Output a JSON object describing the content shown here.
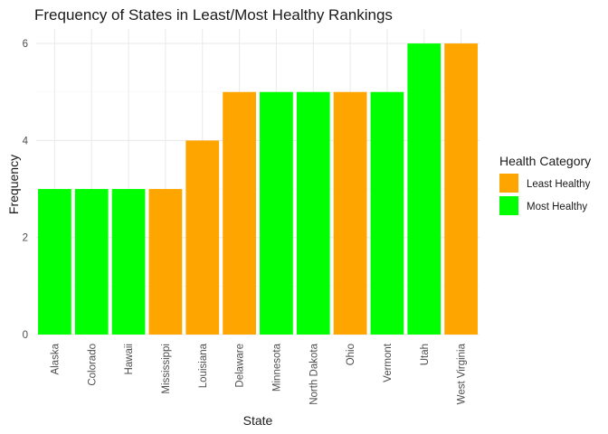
{
  "chart_data": {
    "type": "bar",
    "title": "Frequency of States in Least/Most Healthy Rankings",
    "xlabel": "State",
    "ylabel": "Frequency",
    "ylim": [
      0,
      6.3
    ],
    "yticks": [
      0,
      2,
      4,
      6
    ],
    "grid": true,
    "legend": {
      "title": "Health Category",
      "placement": "right",
      "entries": [
        {
          "label": "Least Healthy",
          "color": "#FFA500"
        },
        {
          "label": "Most Healthy",
          "color": "#00FF00"
        }
      ]
    },
    "categories": [
      "Alaska",
      "Colorado",
      "Hawaii",
      "Mississippi",
      "Louisiana",
      "Delaware",
      "Minnesota",
      "North Dakota",
      "Ohio",
      "Vermont",
      "Utah",
      "West Virginia"
    ],
    "values": [
      3,
      3,
      3,
      3,
      4,
      5,
      5,
      5,
      5,
      5,
      6,
      6
    ],
    "bar_category": [
      "Most Healthy",
      "Most Healthy",
      "Most Healthy",
      "Least Healthy",
      "Least Healthy",
      "Least Healthy",
      "Most Healthy",
      "Most Healthy",
      "Least Healthy",
      "Most Healthy",
      "Most Healthy",
      "Least Healthy"
    ]
  }
}
